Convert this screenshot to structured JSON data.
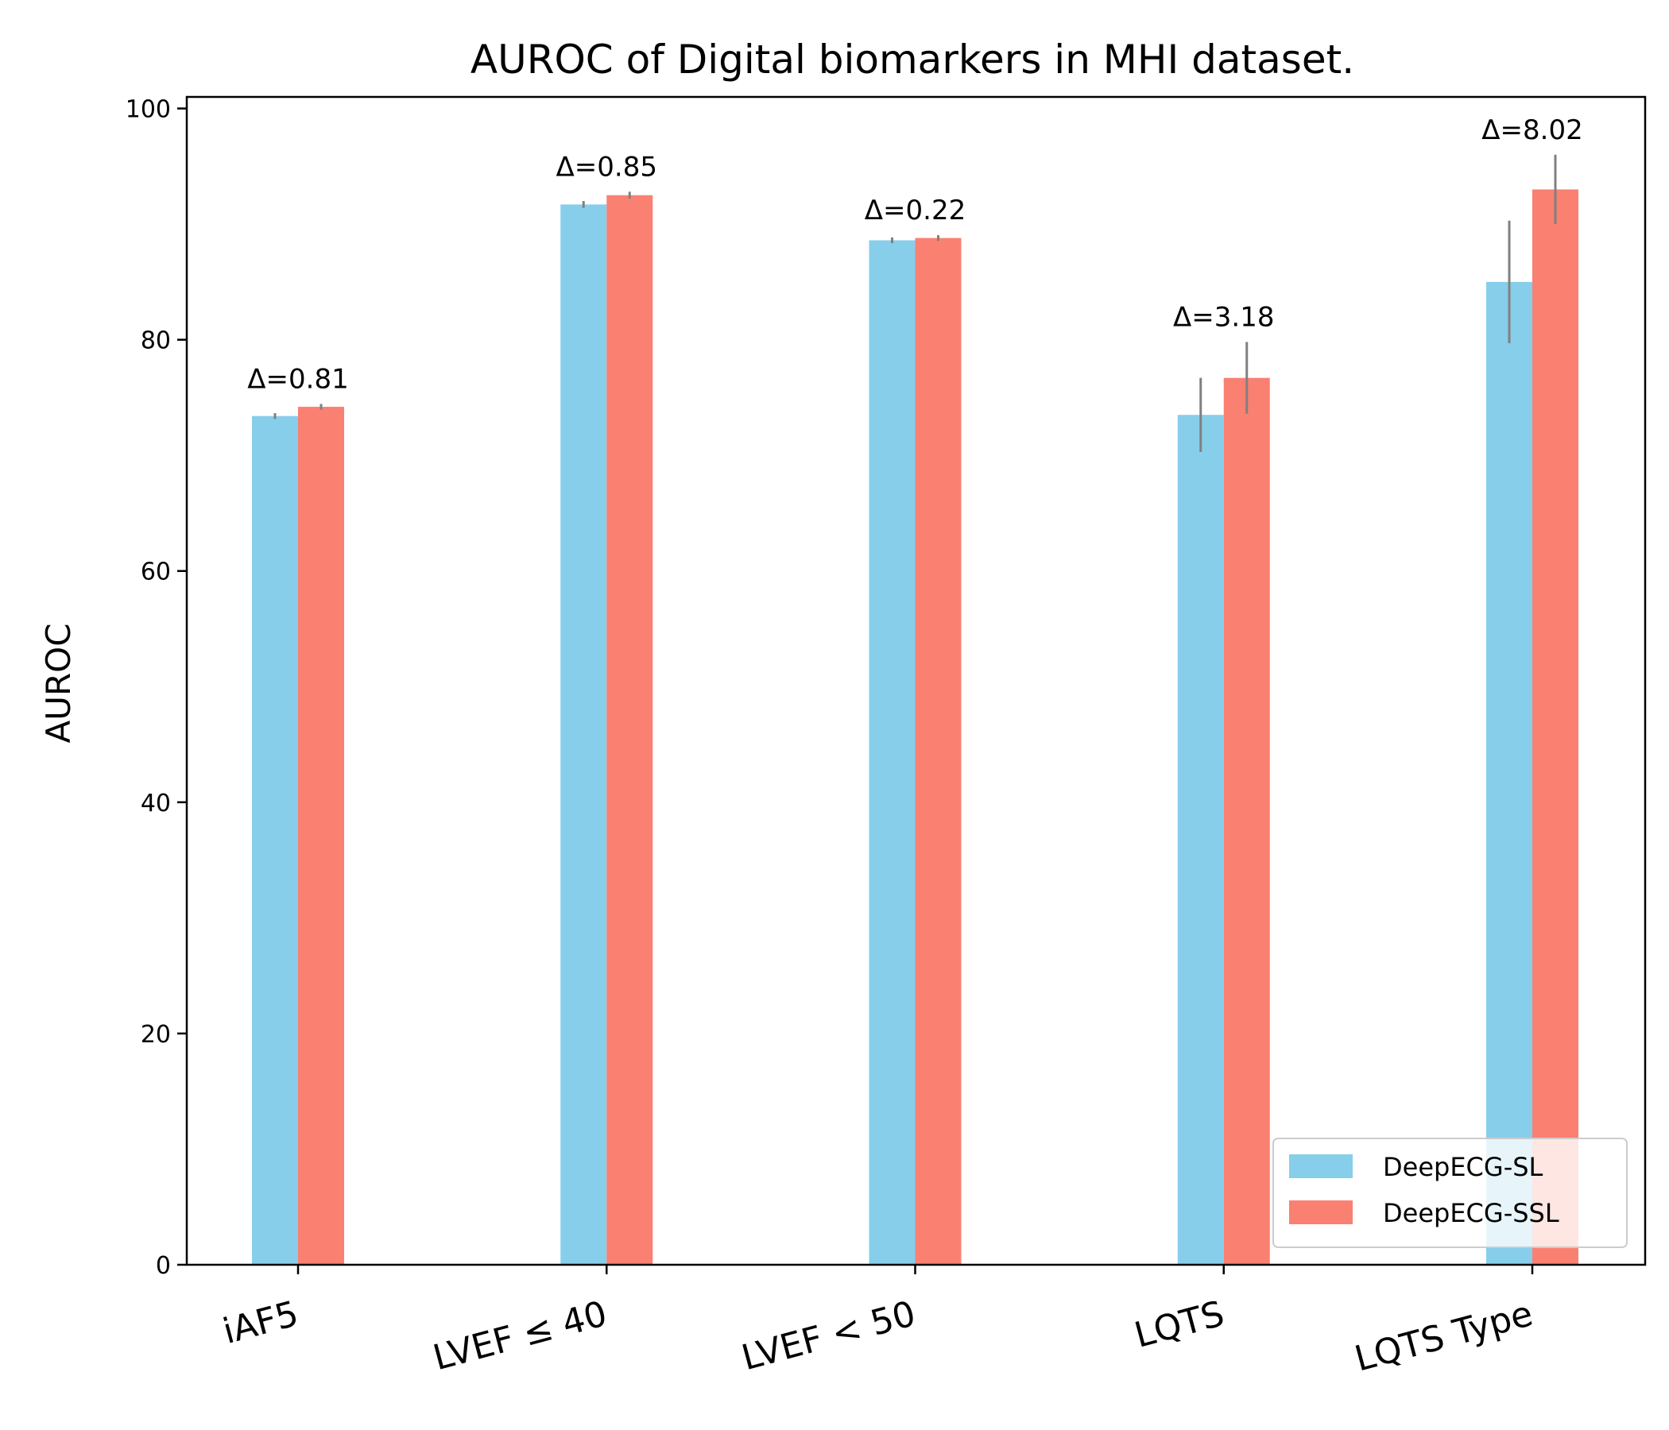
{
  "chart_data": {
    "type": "bar",
    "title": "AUROC of Digital biomarkers in MHI dataset.",
    "xlabel": "",
    "ylabel": "AUROC",
    "ylim": [
      0,
      101
    ],
    "yticks": [
      0,
      20,
      40,
      60,
      80,
      100
    ],
    "categories": [
      "iAF5",
      "LVEF ≤ 40",
      "LVEF < 50",
      "LQTS",
      "LQTS Type"
    ],
    "series": [
      {
        "name": "DeepECG-SL",
        "color": "#87ceeb",
        "values": [
          73.4,
          91.7,
          88.6,
          73.5,
          85.0
        ],
        "errors": [
          0.25,
          0.3,
          0.25,
          3.2,
          5.3
        ]
      },
      {
        "name": "DeepECG-SSL",
        "color": "#fa8072",
        "values": [
          74.2,
          92.5,
          88.8,
          76.7,
          93.0
        ],
        "errors": [
          0.25,
          0.3,
          0.25,
          3.1,
          3.0
        ]
      }
    ],
    "annotations": [
      "Δ=0.81",
      "Δ=0.85",
      "Δ=0.22",
      "Δ=3.18",
      "Δ=8.02"
    ],
    "error_bar_color": "#808080",
    "legend": {
      "position": "bottom-right"
    },
    "grid": false
  }
}
